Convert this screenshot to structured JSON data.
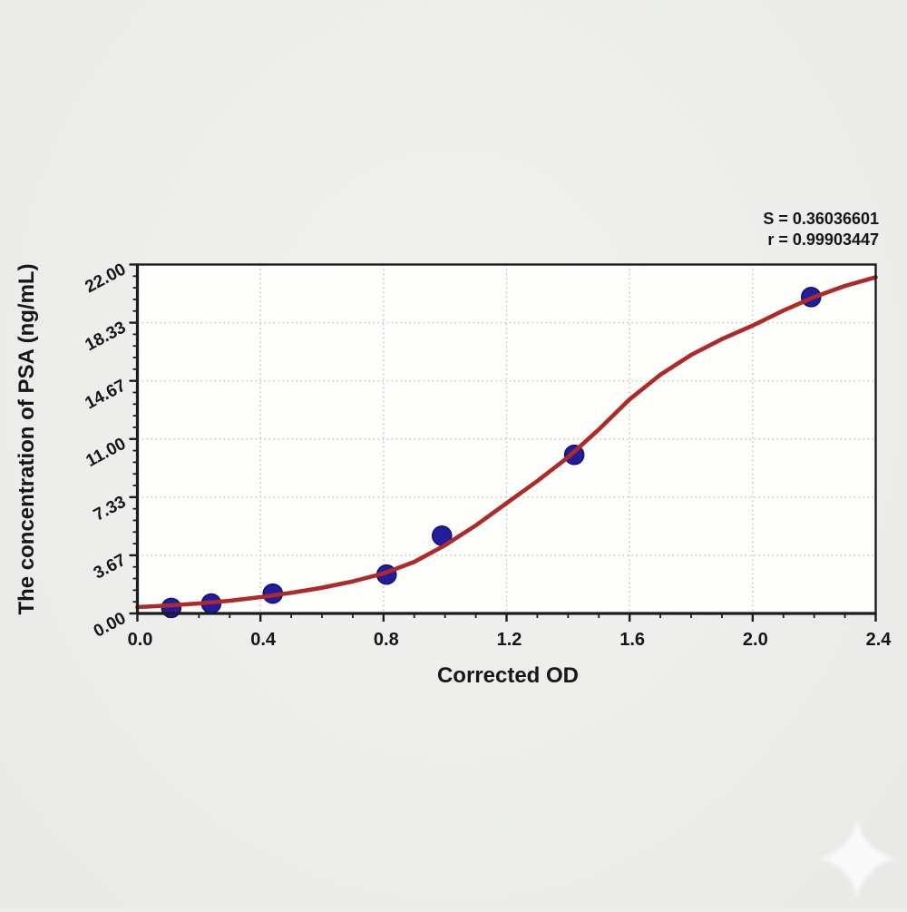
{
  "figure": {
    "background_color": "#edeeec",
    "plot_background_color": "#fdfdfc",
    "axis_color": "#1c1c1c",
    "grid_color": "#c3c3c3"
  },
  "annotation": {
    "s_line": "S = 0.36036601",
    "r_line": "r = 0.99903447"
  },
  "watermark": {
    "icon": "sparkle-four-point-star",
    "color": "#ffffff"
  },
  "chart_data": {
    "type": "scatter",
    "title": "",
    "xlabel": "Corrected OD",
    "ylabel": "The concentration of PSA (ng/mL)",
    "xlim": [
      0,
      2.4
    ],
    "ylim": [
      0,
      22
    ],
    "x_tick_labels": [
      "0.0",
      "0.4",
      "0.8",
      "1.2",
      "1.6",
      "2.0",
      "2.4"
    ],
    "y_tick_labels": [
      "0.00",
      "3.67",
      "7.33",
      "11.00",
      "14.67",
      "18.33",
      "22.00"
    ],
    "x_minor_tick_step": 0.1,
    "y_minor_ticks_per_major": 4,
    "grid": "dotted gray lines at major ticks",
    "legend": "none",
    "stats": {
      "S": 0.36036601,
      "r": 0.99903447
    },
    "series": [
      {
        "name": "standard-points",
        "type": "scatter",
        "marker": "circle",
        "marker_color": "#221c9e",
        "marker_edge_color": "#16126e",
        "x_od": [
          0.11,
          0.24,
          0.44,
          0.81,
          0.99,
          1.42,
          2.19
        ],
        "y_conc": [
          0.35,
          0.63,
          1.25,
          2.45,
          4.9,
          10.0,
          19.95
        ]
      },
      {
        "name": "fit-curve",
        "type": "line",
        "color": "#ad2a28",
        "x_od": [
          0.0,
          0.1,
          0.2,
          0.3,
          0.4,
          0.5,
          0.6,
          0.7,
          0.8,
          0.9,
          1.0,
          1.1,
          1.2,
          1.3,
          1.4,
          1.5,
          1.6,
          1.7,
          1.8,
          1.9,
          2.0,
          2.1,
          2.2,
          2.3,
          2.4
        ],
        "y_conc": [
          0.4,
          0.5,
          0.63,
          0.8,
          1.03,
          1.3,
          1.62,
          2.02,
          2.52,
          3.25,
          4.3,
          5.55,
          6.95,
          8.35,
          9.85,
          11.6,
          13.5,
          15.05,
          16.3,
          17.3,
          18.15,
          19.1,
          19.95,
          20.65,
          21.2
        ]
      }
    ]
  }
}
